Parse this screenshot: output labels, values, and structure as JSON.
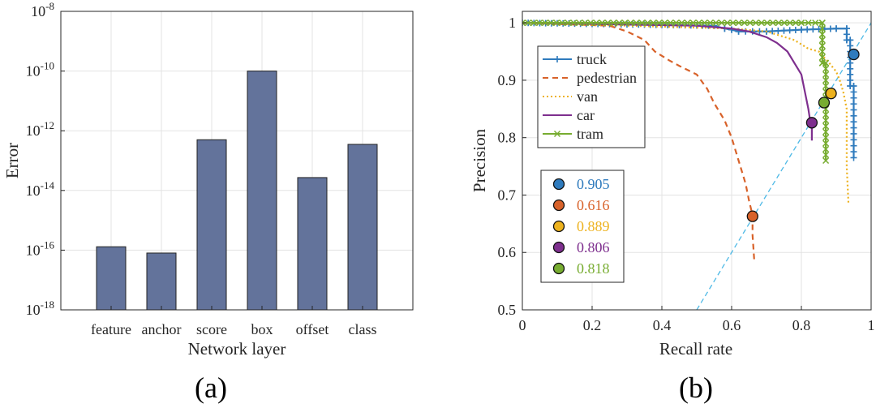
{
  "chart_data": [
    {
      "type": "bar",
      "panel_label": "(a)",
      "yscale": "log",
      "categories": [
        "feature",
        "anchor",
        "score",
        "box",
        "offset",
        "class"
      ],
      "values": [
        1.3e-16,
        8e-17,
        5e-13,
        1e-10,
        2.7e-14,
        3.5e-13
      ],
      "xlabel": "Network layer",
      "ylabel": "Error",
      "ylim_exp": [
        -18,
        -8
      ],
      "yticks": [
        {
          "exp": -8,
          "base": "10",
          "sup": "-8"
        },
        {
          "exp": -10,
          "base": "10",
          "sup": "-10"
        },
        {
          "exp": -12,
          "base": "10",
          "sup": "-12"
        },
        {
          "exp": -14,
          "base": "10",
          "sup": "-14"
        },
        {
          "exp": -16,
          "base": "10",
          "sup": "-16"
        },
        {
          "exp": -18,
          "base": "10",
          "sup": "-18"
        }
      ],
      "bar_color": "#63739b",
      "grid": true
    },
    {
      "type": "line",
      "panel_label": "(b)",
      "xlabel": "Recall rate",
      "ylabel": "Precision",
      "xlim": [
        0,
        1
      ],
      "ylim": [
        0.5,
        1.02
      ],
      "xticks": [
        "0",
        "0.2",
        "0.4",
        "0.6",
        "0.8",
        "1"
      ],
      "yticks": [
        "0.5",
        "0.6",
        "0.7",
        "0.8",
        "0.9",
        "1"
      ],
      "series": [
        {
          "name": "truck",
          "color": "#2f7bbd",
          "style": "solid-plus",
          "x": [
            0,
            0.55,
            0.58,
            0.6,
            0.62,
            0.7,
            0.8,
            0.9,
            0.93,
            0.93,
            0.94,
            0.94,
            0.95,
            0.95
          ],
          "y": [
            1.0,
            0.995,
            0.99,
            0.988,
            0.985,
            0.985,
            0.988,
            0.99,
            0.99,
            0.97,
            0.97,
            0.89,
            0.89,
            0.765
          ]
        },
        {
          "name": "pedestrian",
          "color": "#d8622a",
          "style": "dashed",
          "x": [
            0,
            0.25,
            0.3,
            0.35,
            0.38,
            0.42,
            0.45,
            0.5,
            0.53,
            0.55,
            0.58,
            0.6,
            0.62,
            0.64,
            0.65,
            0.66,
            0.66,
            0.665
          ],
          "y": [
            1.0,
            0.995,
            0.985,
            0.97,
            0.95,
            0.935,
            0.925,
            0.91,
            0.885,
            0.86,
            0.83,
            0.8,
            0.76,
            0.72,
            0.69,
            0.665,
            0.63,
            0.585
          ]
        },
        {
          "name": "van",
          "color": "#edb21e",
          "style": "dotted",
          "x": [
            0,
            0.6,
            0.7,
            0.78,
            0.82,
            0.85,
            0.88,
            0.9,
            0.91,
            0.92,
            0.93,
            0.93,
            0.935
          ],
          "y": [
            1.0,
            0.99,
            0.985,
            0.97,
            0.955,
            0.95,
            0.93,
            0.915,
            0.9,
            0.88,
            0.85,
            0.75,
            0.685
          ]
        },
        {
          "name": "car",
          "color": "#7e2f8e",
          "style": "solid",
          "x": [
            0,
            0.5,
            0.6,
            0.65,
            0.7,
            0.73,
            0.76,
            0.78,
            0.8,
            0.81,
            0.82,
            0.825,
            0.83,
            0.83
          ],
          "y": [
            1.0,
            0.995,
            0.99,
            0.985,
            0.975,
            0.965,
            0.95,
            0.93,
            0.91,
            0.88,
            0.85,
            0.83,
            0.815,
            0.795
          ]
        },
        {
          "name": "tram",
          "color": "#77ac30",
          "style": "solid-x",
          "x": [
            0,
            0.8,
            0.86,
            0.86,
            0.87,
            0.87
          ],
          "y": [
            1.0,
            1.0,
            1.0,
            0.93,
            0.93,
            0.76
          ]
        }
      ],
      "markers": [
        {
          "value": "0.905",
          "color": "#2f7bbd",
          "x": 0.95,
          "y": 0.945
        },
        {
          "value": "0.616",
          "color": "#d8622a",
          "x": 0.66,
          "y": 0.663
        },
        {
          "value": "0.889",
          "color": "#edb21e",
          "x": 0.885,
          "y": 0.877
        },
        {
          "value": "0.806",
          "color": "#7e2f8e",
          "x": 0.83,
          "y": 0.826
        },
        {
          "value": "0.818",
          "color": "#77ac30",
          "x": 0.865,
          "y": 0.861
        }
      ],
      "diagonal": {
        "color": "#4db9e6",
        "style": "dashed"
      }
    }
  ]
}
